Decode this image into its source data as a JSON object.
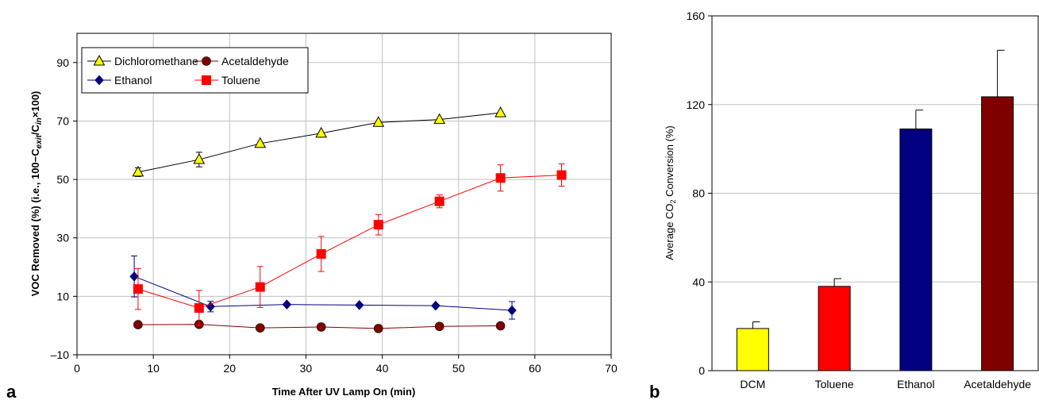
{
  "panel_a_label": "a",
  "panel_b_label": "b",
  "chart_data": [
    {
      "type": "line",
      "xlabel": "Time After UV Lamp On (min)",
      "ylabel": {
        "pre": "VOC Removed (%) (i.e., 100−C",
        "sub1": "exit",
        "mid": "/C",
        "sub2": "in",
        "post": "×100)"
      },
      "xlim": [
        0,
        70
      ],
      "ylim": [
        -10,
        100
      ],
      "xticks": [
        0,
        10,
        20,
        30,
        40,
        50,
        60,
        70
      ],
      "yticks": [
        -10,
        10,
        30,
        50,
        70,
        90
      ],
      "ytick_labels": [
        "–10",
        "10",
        "30",
        "50",
        "70",
        "90"
      ],
      "grid": true,
      "legend_position": "top-left",
      "series": [
        {
          "name": "Dichloromethane",
          "color": "#000000",
          "marker": "triangle",
          "marker_fill": "#ffff00",
          "points": [
            {
              "x": 8,
              "y": 52.5,
              "err": 1.5
            },
            {
              "x": 16,
              "y": 56.8,
              "err": 2.5
            },
            {
              "x": 24,
              "y": 62.3,
              "err": 0
            },
            {
              "x": 32,
              "y": 65.8,
              "err": 0
            },
            {
              "x": 39.5,
              "y": 69.5,
              "err": 0
            },
            {
              "x": 47.5,
              "y": 70.5,
              "err": 0
            },
            {
              "x": 55.5,
              "y": 72.8,
              "err": 0
            }
          ]
        },
        {
          "name": "Acetaldehyde",
          "color": "#800000",
          "marker": "circle",
          "marker_fill": "#800000",
          "points": [
            {
              "x": 8,
              "y": 0.3,
              "err": 0
            },
            {
              "x": 16,
              "y": 0.4,
              "err": 0
            },
            {
              "x": 24,
              "y": -0.8,
              "err": 0
            },
            {
              "x": 32,
              "y": -0.5,
              "err": 0
            },
            {
              "x": 39.5,
              "y": -1.0,
              "err": 0
            },
            {
              "x": 47.5,
              "y": -0.3,
              "err": 0
            },
            {
              "x": 55.5,
              "y": -0.1,
              "err": 0
            }
          ]
        },
        {
          "name": "Ethanol",
          "color": "#000080",
          "marker": "diamond",
          "marker_fill": "#000080",
          "points": [
            {
              "x": 7.5,
              "y": 16.8,
              "err": 7
            },
            {
              "x": 17.5,
              "y": 6.5,
              "err": 1.8
            },
            {
              "x": 27.5,
              "y": 7.2,
              "err": 0
            },
            {
              "x": 37,
              "y": 7.0,
              "err": 0
            },
            {
              "x": 47,
              "y": 6.8,
              "err": 0
            },
            {
              "x": 57,
              "y": 5.2,
              "err": 3
            }
          ]
        },
        {
          "name": "Toluene",
          "color": "#ff0000",
          "marker": "square",
          "marker_fill": "#ff0000",
          "points": [
            {
              "x": 8,
              "y": 12.5,
              "err": 7
            },
            {
              "x": 16,
              "y": 6.0,
              "err": 6
            },
            {
              "x": 24,
              "y": 13.2,
              "err": 7
            },
            {
              "x": 32,
              "y": 24.5,
              "err": 6
            },
            {
              "x": 39.5,
              "y": 34.5,
              "err": 3.5
            },
            {
              "x": 47.5,
              "y": 42.5,
              "err": 2.2
            },
            {
              "x": 55.5,
              "y": 50.5,
              "err": 4.5
            },
            {
              "x": 63.5,
              "y": 51.5,
              "err": 3.8
            }
          ]
        }
      ]
    },
    {
      "type": "bar",
      "ylabel": {
        "pre": "Average CO",
        "sub": "2",
        "post": " Conversion (%)"
      },
      "ylim": [
        0,
        160
      ],
      "yticks": [
        0,
        40,
        80,
        120,
        160
      ],
      "categories": [
        "DCM",
        "Toluene",
        "Ethanol",
        "Acetaldehyde"
      ],
      "values": [
        19,
        38,
        109,
        123.5
      ],
      "errors": [
        3,
        3.5,
        8.5,
        21
      ],
      "colors": [
        "#ffff00",
        "#ff0000",
        "#000080",
        "#800000"
      ],
      "grid": true
    }
  ]
}
